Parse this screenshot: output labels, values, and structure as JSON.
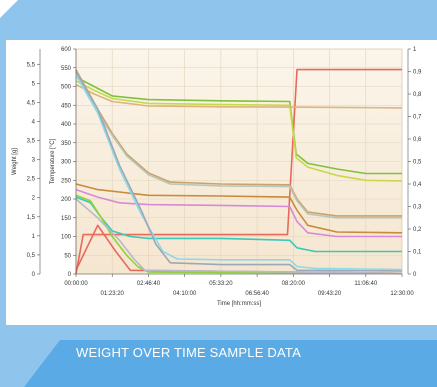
{
  "chart_data": {
    "type": "line",
    "xlabel": "Time [hh:mm:ss]",
    "ylabel_weight": "Weight [g]",
    "ylabel_temp": "Temperature [°C]",
    "ylabel_right": "",
    "x_ticks_top": [
      "00:00:00",
      "02:46:40",
      "05:33:20",
      "08:20:00",
      "11:06:40"
    ],
    "x_ticks_bottom": [
      "01:23:20",
      "04:10:00",
      "06:56:40",
      "09:43:20",
      "12:30:00"
    ],
    "weight_ticks": [
      "0",
      "0,5",
      "1",
      "1,5",
      "2",
      "2,5",
      "3",
      "3,5",
      "4",
      "4,5",
      "5",
      "5,5"
    ],
    "temp_ticks": [
      "0",
      "50",
      "100",
      "150",
      "200",
      "250",
      "300",
      "350",
      "400",
      "450",
      "500",
      "550",
      "600"
    ],
    "right_ticks": [
      "0",
      "0,1",
      "0,2",
      "0,3",
      "0,4",
      "0,5",
      "0,6",
      "0,7",
      "0,8",
      "0,9",
      "1"
    ],
    "xlim": [
      0,
      45000
    ],
    "temp_ylim": [
      0,
      600
    ],
    "right_ylim": [
      0,
      1
    ],
    "series": [
      {
        "color": "#e8695a",
        "points": [
          [
            0,
            0
          ],
          [
            1000,
            105
          ],
          [
            29200,
            105
          ],
          [
            30500,
            545
          ],
          [
            45000,
            545
          ]
        ]
      },
      {
        "color": "#e8695a",
        "points": [
          [
            0,
            10
          ],
          [
            3000,
            130
          ],
          [
            5500,
            60
          ],
          [
            7500,
            10
          ],
          [
            45000,
            2
          ]
        ]
      },
      {
        "color": "#7dc23a",
        "points": [
          [
            0,
            525
          ],
          [
            2500,
            500
          ],
          [
            5000,
            475
          ],
          [
            10000,
            465
          ],
          [
            20000,
            462
          ],
          [
            29500,
            460
          ],
          [
            30400,
            320
          ],
          [
            32000,
            295
          ],
          [
            36000,
            280
          ],
          [
            40000,
            268
          ],
          [
            45000,
            268
          ]
        ]
      },
      {
        "color": "#c7d84a",
        "points": [
          [
            0,
            515
          ],
          [
            2500,
            490
          ],
          [
            5000,
            468
          ],
          [
            10000,
            455
          ],
          [
            20000,
            452
          ],
          [
            29500,
            450
          ],
          [
            30400,
            310
          ],
          [
            32000,
            285
          ],
          [
            36000,
            263
          ],
          [
            40000,
            250
          ],
          [
            45000,
            248
          ]
        ]
      },
      {
        "color": "#d9b77a",
        "points": [
          [
            0,
            505
          ],
          [
            2500,
            480
          ],
          [
            5000,
            460
          ],
          [
            10000,
            448
          ],
          [
            20000,
            446
          ],
          [
            29500,
            445
          ],
          [
            45000,
            443
          ]
        ]
      },
      {
        "color": "#c9a36e",
        "points": [
          [
            0,
            545
          ],
          [
            3000,
            440
          ],
          [
            5000,
            375
          ],
          [
            7000,
            320
          ],
          [
            10000,
            270
          ],
          [
            13000,
            245
          ],
          [
            20000,
            240
          ],
          [
            29500,
            238
          ],
          [
            30500,
            200
          ],
          [
            32000,
            165
          ],
          [
            36000,
            155
          ],
          [
            45000,
            155
          ]
        ]
      },
      {
        "color": "#b8c7b8",
        "points": [
          [
            0,
            540
          ],
          [
            3000,
            430
          ],
          [
            5000,
            370
          ],
          [
            7000,
            315
          ],
          [
            10000,
            265
          ],
          [
            13000,
            240
          ],
          [
            20000,
            235
          ],
          [
            29500,
            233
          ],
          [
            30500,
            195
          ],
          [
            32000,
            160
          ],
          [
            36000,
            150
          ],
          [
            45000,
            150
          ]
        ]
      },
      {
        "color": "#c98a3a",
        "points": [
          [
            0,
            240
          ],
          [
            3000,
            225
          ],
          [
            10000,
            210
          ],
          [
            20000,
            208
          ],
          [
            29500,
            205
          ],
          [
            30500,
            170
          ],
          [
            32000,
            130
          ],
          [
            36000,
            112
          ],
          [
            45000,
            110
          ]
        ]
      },
      {
        "color": "#d68ad6",
        "points": [
          [
            0,
            225
          ],
          [
            3000,
            205
          ],
          [
            6000,
            190
          ],
          [
            10000,
            185
          ],
          [
            20000,
            183
          ],
          [
            29500,
            180
          ],
          [
            30500,
            140
          ],
          [
            32000,
            110
          ],
          [
            36000,
            100
          ],
          [
            45000,
            100
          ]
        ]
      },
      {
        "color": "#39c9b9",
        "points": [
          [
            0,
            205
          ],
          [
            2000,
            190
          ],
          [
            3500,
            150
          ],
          [
            5000,
            115
          ],
          [
            7500,
            100
          ],
          [
            10000,
            95
          ],
          [
            20000,
            95
          ],
          [
            29500,
            90
          ],
          [
            30500,
            70
          ],
          [
            33000,
            60
          ],
          [
            45000,
            60
          ]
        ]
      },
      {
        "color": "#8fd8e8",
        "points": [
          [
            0,
            530
          ],
          [
            3000,
            430
          ],
          [
            6000,
            280
          ],
          [
            9000,
            160
          ],
          [
            12000,
            60
          ],
          [
            14000,
            40
          ],
          [
            20000,
            38
          ],
          [
            29500,
            38
          ],
          [
            30500,
            20
          ],
          [
            33000,
            15
          ],
          [
            45000,
            12
          ]
        ]
      },
      {
        "color": "#9aa8b8",
        "points": [
          [
            0,
            540
          ],
          [
            3000,
            440
          ],
          [
            6000,
            290
          ],
          [
            9000,
            170
          ],
          [
            11000,
            80
          ],
          [
            13000,
            30
          ],
          [
            20000,
            25
          ],
          [
            29500,
            25
          ],
          [
            30500,
            10
          ],
          [
            45000,
            8
          ]
        ]
      },
      {
        "color": "#8fd33a",
        "points": [
          [
            0,
            210
          ],
          [
            2000,
            195
          ],
          [
            3500,
            150
          ],
          [
            5000,
            100
          ],
          [
            7000,
            50
          ],
          [
            8500,
            20
          ],
          [
            10000,
            5
          ],
          [
            45000,
            2
          ]
        ]
      },
      {
        "color": "#b8b8c8",
        "points": [
          [
            0,
            200
          ],
          [
            3000,
            150
          ],
          [
            6000,
            90
          ],
          [
            8000,
            40
          ],
          [
            9500,
            10
          ],
          [
            45000,
            2
          ]
        ]
      }
    ]
  },
  "caption": "WEIGHT OVER TIME SAMPLE DATA",
  "colors": {
    "background": "#8fc4ec",
    "plot_bg": "#fbeedd",
    "caption_band": "#5aaae6"
  }
}
